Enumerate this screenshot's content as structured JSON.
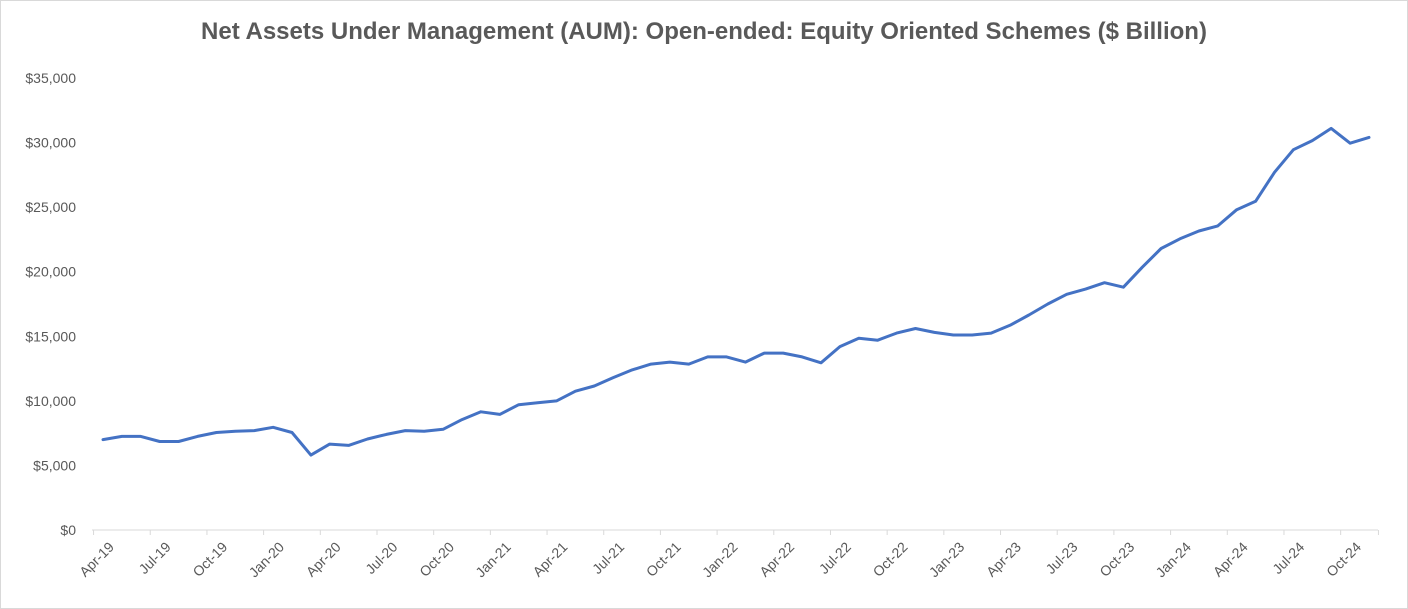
{
  "chart_data": {
    "type": "line",
    "title": "Net Assets Under Management (AUM): Open-ended: Equity Oriented Schemes ($ Billion)",
    "xlabel": "",
    "ylabel": "",
    "ylim": [
      0,
      35000
    ],
    "yticks": [
      "$0",
      "$5,000",
      "$10,000",
      "$15,000",
      "$20,000",
      "$25,000",
      "$30,000",
      "$35,000"
    ],
    "ytick_values": [
      0,
      5000,
      10000,
      15000,
      20000,
      25000,
      30000,
      35000
    ],
    "grid": false,
    "legend": "none",
    "line_color": "#4472c4",
    "x": [
      "Apr-19",
      "May-19",
      "Jun-19",
      "Jul-19",
      "Aug-19",
      "Sep-19",
      "Oct-19",
      "Nov-19",
      "Dec-19",
      "Jan-20",
      "Feb-20",
      "Mar-20",
      "Apr-20",
      "May-20",
      "Jun-20",
      "Jul-20",
      "Aug-20",
      "Sep-20",
      "Oct-20",
      "Nov-20",
      "Dec-20",
      "Jan-21",
      "Feb-21",
      "Mar-21",
      "Apr-21",
      "May-21",
      "Jun-21",
      "Jul-21",
      "Aug-21",
      "Sep-21",
      "Oct-21",
      "Nov-21",
      "Dec-21",
      "Jan-22",
      "Feb-22",
      "Mar-22",
      "Apr-22",
      "May-22",
      "Jun-22",
      "Jul-22",
      "Aug-22",
      "Sep-22",
      "Oct-22",
      "Nov-22",
      "Dec-22",
      "Jan-23",
      "Feb-23",
      "Mar-23",
      "Apr-23",
      "May-23",
      "Jun-23",
      "Jul-23",
      "Aug-23",
      "Sep-23",
      "Oct-23",
      "Nov-23",
      "Dec-23",
      "Jan-24",
      "Feb-24",
      "Mar-24",
      "Apr-24",
      "May-24",
      "Jun-24",
      "Jul-24",
      "Aug-24",
      "Sep-24",
      "Oct-24",
      "Nov-24"
    ],
    "xtick_labels": [
      "Apr-19",
      "Jul-19",
      "Oct-19",
      "Jan-20",
      "Apr-20",
      "Jul-20",
      "Oct-20",
      "Jan-21",
      "Apr-21",
      "Jul-21",
      "Oct-21",
      "Jan-22",
      "Apr-22",
      "Jul-22",
      "Oct-22",
      "Jan-23",
      "Apr-23",
      "Jul-23",
      "Oct-23",
      "Jan-24",
      "Apr-24",
      "Jul-24",
      "Oct-24"
    ],
    "series": [
      {
        "values": [
          7000,
          7250,
          7250,
          6850,
          6850,
          7250,
          7550,
          7650,
          7700,
          7950,
          7550,
          5800,
          6650,
          6550,
          7050,
          7400,
          7700,
          7650,
          7800,
          8550,
          9150,
          8950,
          9700,
          9850,
          10000,
          10750,
          11150,
          11800,
          12400,
          12850,
          13000,
          12850,
          13400,
          13400,
          13000,
          13700,
          13700,
          13400,
          12950,
          14200,
          14850,
          14700,
          15250,
          15600,
          15300,
          15100,
          15100,
          15250,
          15850,
          16650,
          17500,
          18250,
          18650,
          19150,
          18800,
          20350,
          21800,
          22550,
          23150,
          23550,
          24800,
          25450,
          27700,
          29450,
          30150,
          31100,
          29950,
          30400
        ]
      }
    ]
  }
}
